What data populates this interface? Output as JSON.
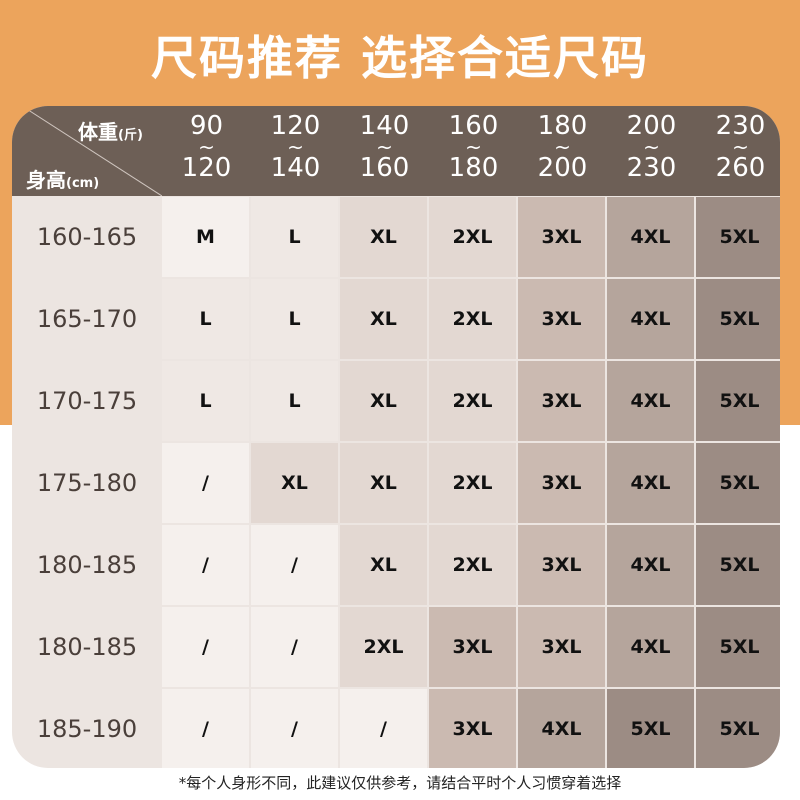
{
  "title": "尺码推荐  选择合适尺码",
  "header": {
    "weight_label": "体重",
    "weight_unit": "(斤)",
    "height_label": "身高",
    "height_unit": "(cm)",
    "weight_ranges": [
      [
        "90",
        "120"
      ],
      [
        "120",
        "140"
      ],
      [
        "140",
        "160"
      ],
      [
        "160",
        "180"
      ],
      [
        "180",
        "200"
      ],
      [
        "200",
        "230"
      ],
      [
        "230",
        "260"
      ]
    ]
  },
  "rows": [
    {
      "height": "160-165",
      "sizes": [
        "M",
        "L",
        "XL",
        "2XL",
        "3XL",
        "4XL",
        "5XL"
      ]
    },
    {
      "height": "165-170",
      "sizes": [
        "L",
        "L",
        "XL",
        "2XL",
        "3XL",
        "4XL",
        "5XL"
      ]
    },
    {
      "height": "170-175",
      "sizes": [
        "L",
        "L",
        "XL",
        "2XL",
        "3XL",
        "4XL",
        "5XL"
      ]
    },
    {
      "height": "175-180",
      "sizes": [
        "/",
        "XL",
        "XL",
        "2XL",
        "3XL",
        "4XL",
        "5XL"
      ]
    },
    {
      "height": "180-185",
      "sizes": [
        "/",
        "/",
        "XL",
        "2XL",
        "3XL",
        "4XL",
        "5XL"
      ]
    },
    {
      "height": "180-185",
      "sizes": [
        "/",
        "/",
        "2XL",
        "3XL",
        "3XL",
        "4XL",
        "5XL"
      ]
    },
    {
      "height": "185-190",
      "sizes": [
        "/",
        "/",
        "/",
        "3XL",
        "4XL",
        "5XL",
        "5XL"
      ]
    }
  ],
  "size_colors": {
    "/": "#f5f0ed",
    "M": "#f5f0ed",
    "L": "#efe8e4",
    "XL": "#e3d8d2",
    "2XL": "#e3d8d2",
    "3XL": "#cbbab1",
    "4XL": "#b5a59c",
    "5XL": "#9c8c84"
  },
  "colors": {
    "background": "#eca45c",
    "header": "#6d5f56"
  },
  "footnote": "*每个人身形不同，此建议仅供参考，请结合平时个人习惯穿着选择"
}
